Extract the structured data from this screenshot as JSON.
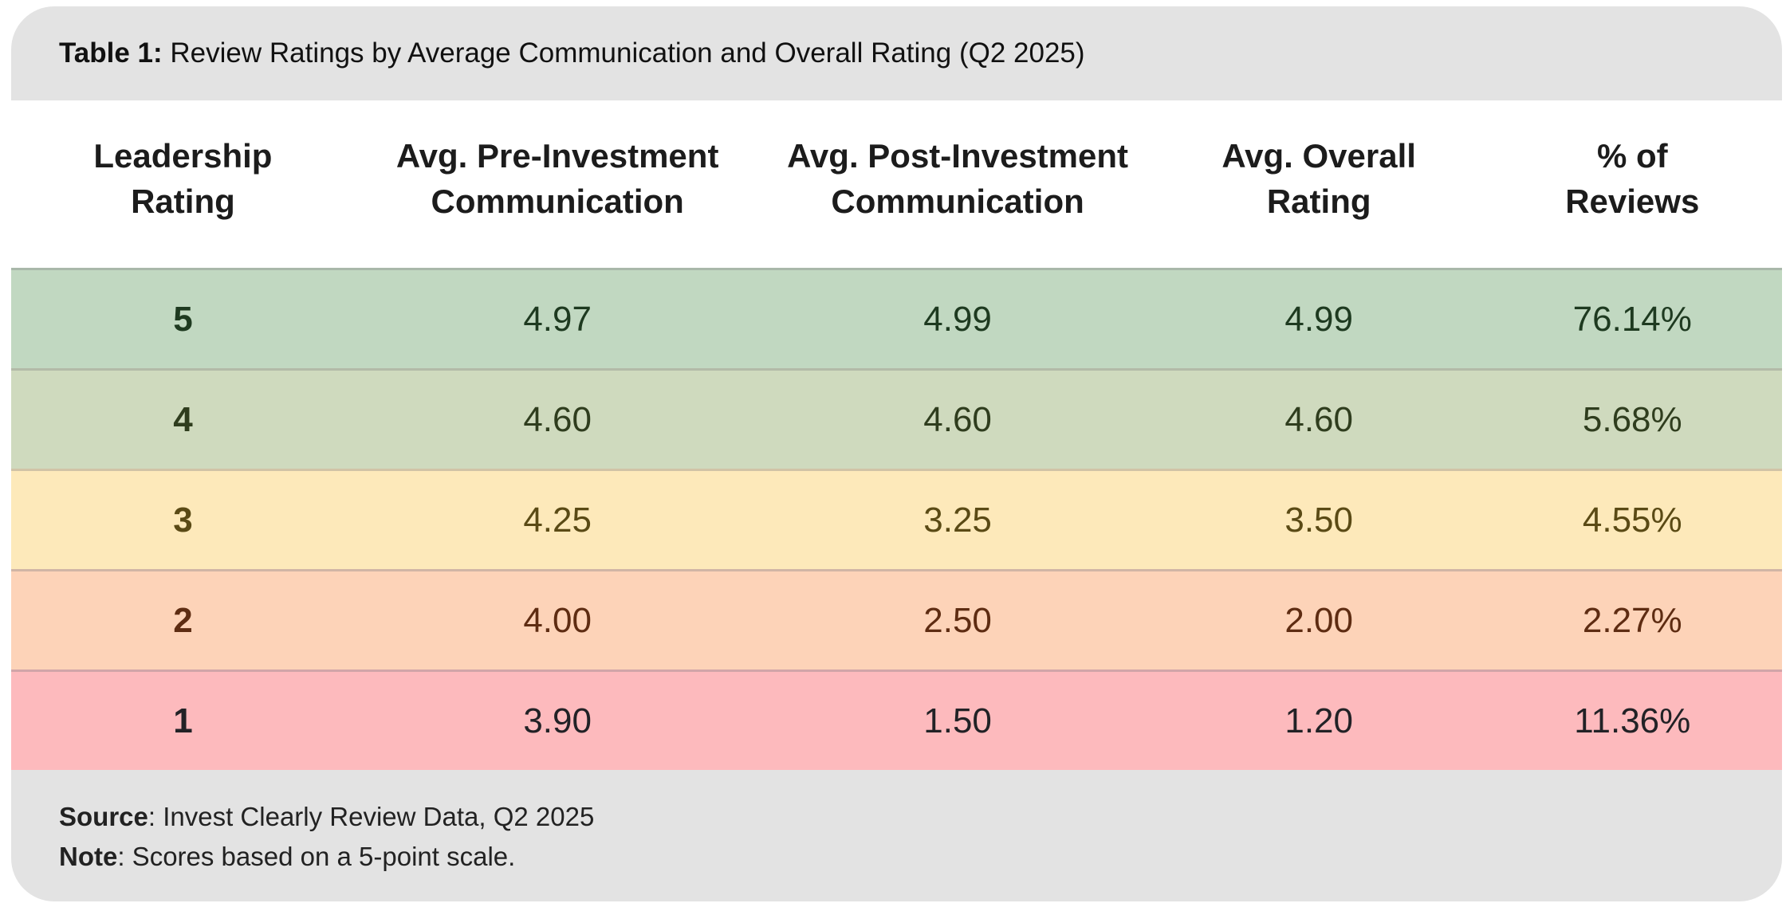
{
  "colors": {
    "chrome_bar_bg": "#e3e3e3",
    "header_section_bg": "#ffffff",
    "row_divider": "#8a8a8f",
    "title_text": "#111111",
    "header_text": "#1c1c1c",
    "footer_text": "#222222"
  },
  "title": {
    "prefix": "Table 1:",
    "text": " Review Ratings by Average Communication and Overall Rating (Q2 2025)"
  },
  "table": {
    "headers": [
      {
        "line1": "Leadership",
        "line2": "Rating"
      },
      {
        "line1": "Avg. Pre-Investment",
        "line2": "Communication"
      },
      {
        "line1": "Avg. Post-Investment",
        "line2": "Communication"
      },
      {
        "line1": "Avg. Overall",
        "line2": "Rating"
      },
      {
        "line1": "% of",
        "line2": "Reviews"
      }
    ],
    "rows": [
      {
        "rating": "5",
        "pre": "4.97",
        "post": "4.99",
        "overall": "4.99",
        "pct": "76.14%",
        "bg": "#c1d8c1",
        "fg": "#1e3a20"
      },
      {
        "rating": "4",
        "pre": "4.60",
        "post": "4.60",
        "overall": "4.60",
        "pct": "5.68%",
        "bg": "#cfdabe",
        "fg": "#2f3d1e"
      },
      {
        "rating": "3",
        "pre": "4.25",
        "post": "3.25",
        "overall": "3.50",
        "pct": "4.55%",
        "bg": "#fde9ba",
        "fg": "#5a4a15"
      },
      {
        "rating": "2",
        "pre": "4.00",
        "post": "2.50",
        "overall": "2.00",
        "pct": "2.27%",
        "bg": "#fdd3b8",
        "fg": "#5e2c12"
      },
      {
        "rating": "1",
        "pre": "3.90",
        "post": "1.50",
        "overall": "1.20",
        "pct": "11.36%",
        "bg": "#fdbabd",
        "fg": "#222226"
      }
    ]
  },
  "footer": {
    "source_label": "Source",
    "source_text": ": Invest Clearly Review Data, Q2 2025",
    "note_label": "Note",
    "note_text": ": Scores based on a 5-point scale."
  },
  "chart_data": {
    "type": "table",
    "title": "Table 1: Review Ratings by Average Communication and Overall Rating (Q2 2025)",
    "columns": [
      "Leadership Rating",
      "Avg. Pre-Investment Communication",
      "Avg. Post-Investment Communication",
      "Avg. Overall Rating",
      "% of Reviews"
    ],
    "rows": [
      {
        "leadership_rating": 5,
        "avg_pre_investment_communication": 4.97,
        "avg_post_investment_communication": 4.99,
        "avg_overall_rating": 4.99,
        "pct_of_reviews": "76.14%"
      },
      {
        "leadership_rating": 4,
        "avg_pre_investment_communication": 4.6,
        "avg_post_investment_communication": 4.6,
        "avg_overall_rating": 4.6,
        "pct_of_reviews": "5.68%"
      },
      {
        "leadership_rating": 3,
        "avg_pre_investment_communication": 4.25,
        "avg_post_investment_communication": 3.25,
        "avg_overall_rating": 3.5,
        "pct_of_reviews": "4.55%"
      },
      {
        "leadership_rating": 2,
        "avg_pre_investment_communication": 4.0,
        "avg_post_investment_communication": 2.5,
        "avg_overall_rating": 2.0,
        "pct_of_reviews": "2.27%"
      },
      {
        "leadership_rating": 1,
        "avg_pre_investment_communication": 3.9,
        "avg_post_investment_communication": 1.5,
        "avg_overall_rating": 1.2,
        "pct_of_reviews": "11.36%"
      }
    ],
    "row_color_scale": [
      "#c1d8c1",
      "#cfdabe",
      "#fde9ba",
      "#fdd3b8",
      "#fdbabd"
    ],
    "source": "Invest Clearly Review Data, Q2 2025",
    "note": "Scores based on a 5-point scale."
  }
}
